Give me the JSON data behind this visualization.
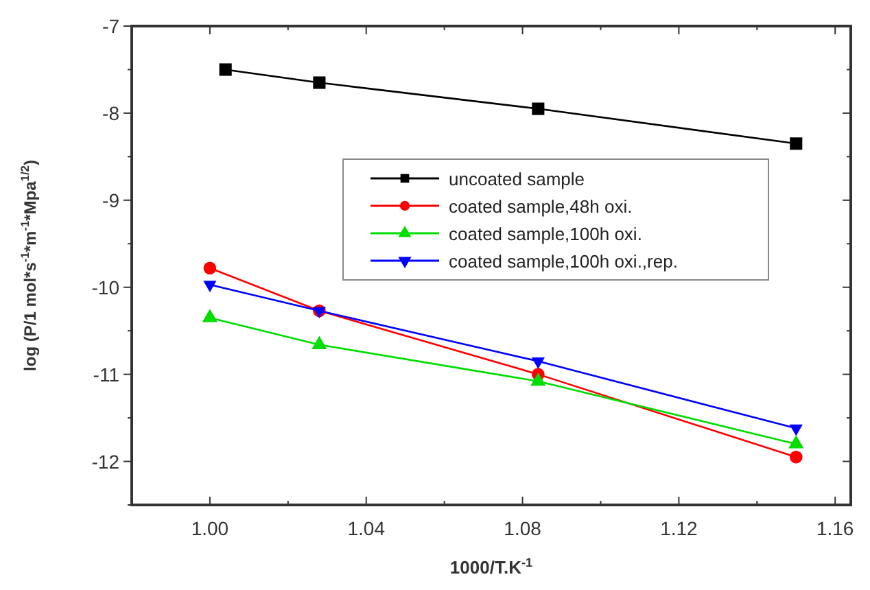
{
  "chart_data": {
    "type": "line",
    "xlabel": "1000/T.K$^{-1}$",
    "ylabel": "log (P/1 mol*s$^{-1}$*m$^{-1}$*Mpa$^{1/2}$)",
    "xlim": [
      0.98,
      1.164
    ],
    "ylim": [
      -12.5,
      -7
    ],
    "xticks": [
      {
        "value": 1,
        "label": "1.00"
      },
      {
        "value": 1.02,
        "label": null
      },
      1.04,
      {
        "value": 1.06,
        "label": null
      },
      1.08,
      {
        "value": 1.1,
        "label": null
      },
      1.12,
      {
        "value": 1.14,
        "label": null
      },
      1.16
    ],
    "yticks": [
      {
        "value": -12.5,
        "label": null
      },
      -12,
      {
        "value": -11.5,
        "label": null
      },
      -11,
      {
        "value": -10.5,
        "label": null
      },
      -10,
      {
        "value": -9.5,
        "label": null
      },
      -9,
      {
        "value": -8.5,
        "label": null
      },
      -8,
      {
        "value": -7.5,
        "label": null
      },
      -7
    ],
    "grid": false,
    "legend": "top right",
    "line_style": "solid",
    "series": [
      {
        "name": "uncoated sample",
        "color": "#000000",
        "marker": "square",
        "x": [
          1.004,
          1.028,
          1.084,
          1.15
        ],
        "values": [
          -7.5,
          -7.65,
          -7.95,
          -8.35
        ]
      },
      {
        "name": "coated sample,48h oxi.",
        "color": "#ff0000",
        "marker": "circle",
        "x": [
          1.0,
          1.028,
          1.084,
          1.15
        ],
        "values": [
          -9.78,
          -10.27,
          -11.0,
          -11.95
        ]
      },
      {
        "name": "coated sample,100h oxi.",
        "color": "#00dd00",
        "marker": "triangle",
        "x": [
          1.0,
          1.028,
          1.084,
          1.15
        ],
        "values": [
          -10.35,
          -10.66,
          -11.08,
          -11.8
        ]
      },
      {
        "name": "coated sample,100h oxi.,rep.",
        "color": "#0000ff",
        "marker": "triangle-down",
        "x": [
          1.0,
          1.028,
          1.084,
          1.15
        ],
        "values": [
          -9.97,
          -10.27,
          -10.85,
          -11.62
        ]
      }
    ]
  }
}
